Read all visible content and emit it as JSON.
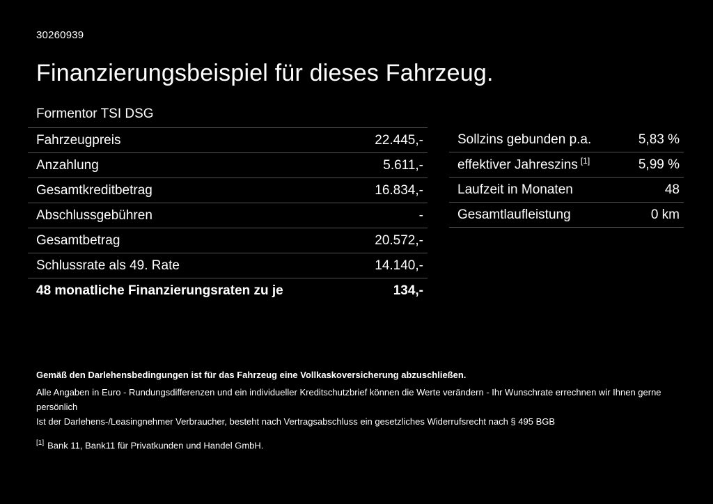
{
  "page": {
    "id": "30260939",
    "title": "Finanzierungsbeispiel für dieses Fahrzeug.",
    "subtitle": "Formentor TSI DSG"
  },
  "left_table": {
    "rows": [
      {
        "label": "Fahrzeugpreis",
        "value": "22.445,-"
      },
      {
        "label": "Anzahlung",
        "value": "5.611,-"
      },
      {
        "label": "Gesamtkreditbetrag",
        "value": "16.834,-"
      },
      {
        "label": "Abschlussgebühren",
        "value": "-"
      },
      {
        "label": "Gesamtbetrag",
        "value": "20.572,-"
      },
      {
        "label": "Schlussrate als 49. Rate",
        "value": "14.140,-"
      },
      {
        "label": "48 monatliche Finanzierungsraten zu je",
        "value": "134,-"
      }
    ]
  },
  "right_table": {
    "rows": [
      {
        "label": "Sollzins gebunden p.a.",
        "value": "5,83 %"
      },
      {
        "label": "effektiver Jahreszins",
        "sup": "[1]",
        "value": "5,99 %"
      },
      {
        "label": "Laufzeit in Monaten",
        "value": "48"
      },
      {
        "label": "Gesamtlaufleistung",
        "value": "0 km"
      }
    ]
  },
  "footer": {
    "insurance_note": "Gemäß den Darlehensbedingungen ist für das Fahrzeug eine Vollkaskoversicherung abzuschließen.",
    "line1": "Alle Angaben in Euro - Rundungsdifferenzen und ein individueller Kreditschutzbrief können die Werte verändern - Ihr Wunschrate errechnen wir Ihnen gerne persönlich",
    "line2": "Ist der Darlehens-/Leasingnehmer Verbraucher, besteht nach Vertragsabschluss ein gesetzliches Widerrufsrecht nach § 495 BGB",
    "footnote_marker": "[1]",
    "footnote_text": "Bank 11, Bank11 für Privatkunden und Handel GmbH."
  },
  "colors": {
    "background": "#000000",
    "text": "#ffffff",
    "divider": "#545454"
  }
}
